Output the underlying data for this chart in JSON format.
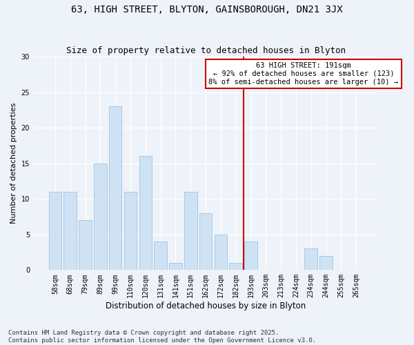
{
  "title1": "63, HIGH STREET, BLYTON, GAINSBOROUGH, DN21 3JX",
  "title2": "Size of property relative to detached houses in Blyton",
  "xlabel": "Distribution of detached houses by size in Blyton",
  "ylabel": "Number of detached properties",
  "categories": [
    "58sqm",
    "68sqm",
    "79sqm",
    "89sqm",
    "99sqm",
    "110sqm",
    "120sqm",
    "131sqm",
    "141sqm",
    "151sqm",
    "162sqm",
    "172sqm",
    "182sqm",
    "193sqm",
    "203sqm",
    "213sqm",
    "224sqm",
    "234sqm",
    "244sqm",
    "255sqm",
    "265sqm"
  ],
  "values": [
    11,
    11,
    7,
    15,
    23,
    11,
    16,
    4,
    1,
    11,
    8,
    5,
    1,
    4,
    0,
    0,
    0,
    3,
    2,
    0,
    0
  ],
  "bar_color": "#cfe2f3",
  "bar_edge_color": "#a0c4e0",
  "annotation_line1": "63 HIGH STREET: 191sqm",
  "annotation_line2": "← 92% of detached houses are smaller (123)",
  "annotation_line3": "8% of semi-detached houses are larger (10) →",
  "annotation_box_color": "#ffffff",
  "annotation_box_edge": "#cc0000",
  "vline_color": "#cc0000",
  "vline_x_index": 13,
  "ylim": [
    0,
    30
  ],
  "yticks": [
    0,
    5,
    10,
    15,
    20,
    25,
    30
  ],
  "footer": "Contains HM Land Registry data © Crown copyright and database right 2025.\nContains public sector information licensed under the Open Government Licence v3.0.",
  "bg_color": "#eef2f9",
  "grid_color": "#ffffff",
  "title1_fontsize": 10,
  "title2_fontsize": 9,
  "xlabel_fontsize": 8.5,
  "ylabel_fontsize": 8,
  "tick_fontsize": 7,
  "footer_fontsize": 6.5,
  "annotation_fontsize": 7.5
}
